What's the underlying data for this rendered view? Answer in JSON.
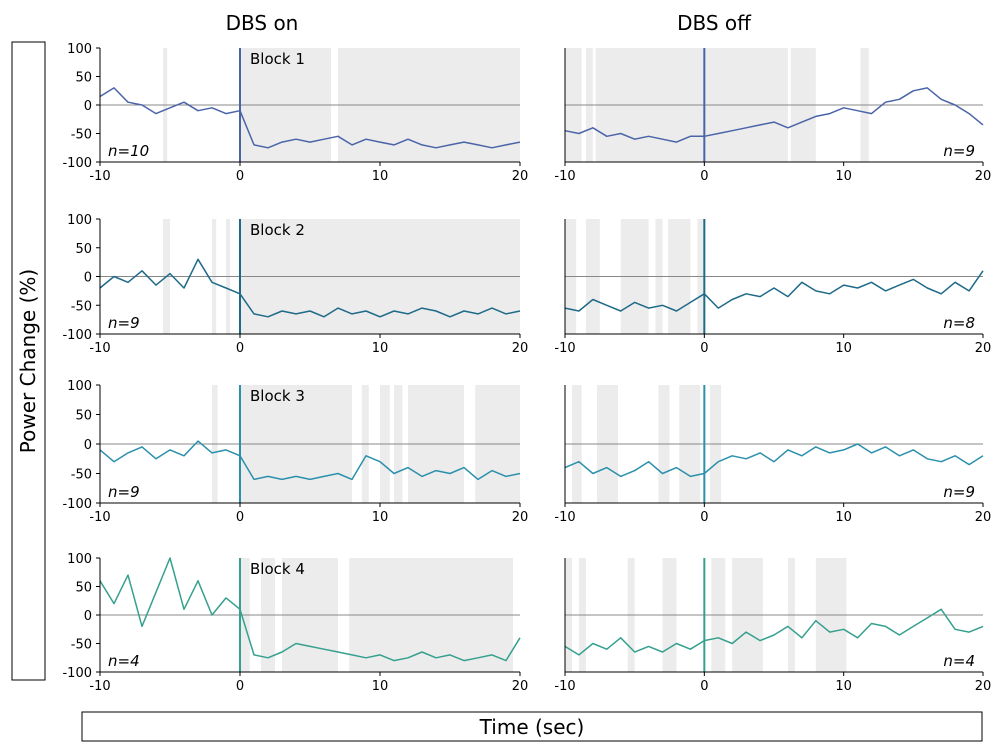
{
  "column_titles": [
    "DBS on",
    "DBS off"
  ],
  "ylabel": "Power Change (%)",
  "xlabel": "Time (sec)",
  "chart_data": [
    {
      "type": "line",
      "title": "Block 1",
      "annotation": "n=10",
      "color": "#4a64a8",
      "event_x": 0,
      "zero_line": true,
      "x": [
        -10,
        -9,
        -8,
        -7,
        -6,
        -5,
        -4,
        -3,
        -2,
        -1,
        0,
        1,
        2,
        3,
        4,
        5,
        6,
        7,
        8,
        9,
        10,
        11,
        12,
        13,
        14,
        15,
        16,
        17,
        18,
        19,
        20
      ],
      "values": [
        15,
        30,
        5,
        0,
        -15,
        -5,
        5,
        -10,
        -5,
        -15,
        -10,
        -70,
        -75,
        -65,
        -60,
        -65,
        -60,
        -55,
        -70,
        -60,
        -65,
        -70,
        -60,
        -70,
        -75,
        -70,
        -65,
        -70,
        -75,
        -70,
        -65
      ],
      "shaded": [
        [
          -5.5,
          -5.2
        ],
        [
          0,
          6.5
        ],
        [
          7,
          20
        ]
      ],
      "xlim": [
        -10,
        20
      ],
      "ylim": [
        -100,
        100
      ],
      "xticks": [
        -10,
        0,
        10,
        20
      ],
      "yticks": [
        100,
        50,
        0,
        -50,
        -100
      ]
    },
    {
      "type": "line",
      "annotation": "n=9",
      "color": "#4a64a8",
      "event_x": 0,
      "zero_line": true,
      "x": [
        -10,
        -9,
        -8,
        -7,
        -6,
        -5,
        -4,
        -3,
        -2,
        -1,
        0,
        1,
        2,
        3,
        4,
        5,
        6,
        7,
        8,
        9,
        10,
        11,
        12,
        13,
        14,
        15,
        16,
        17,
        18,
        19,
        20
      ],
      "values": [
        -45,
        -50,
        -40,
        -55,
        -50,
        -60,
        -55,
        -60,
        -65,
        -55,
        -55,
        -50,
        -45,
        -40,
        -35,
        -30,
        -40,
        -30,
        -20,
        -15,
        -5,
        -10,
        -15,
        5,
        10,
        25,
        30,
        10,
        0,
        -15,
        -35
      ],
      "shaded": [
        [
          -10,
          -8.8
        ],
        [
          -8.5,
          -8
        ],
        [
          -7.8,
          6
        ],
        [
          6.2,
          8
        ],
        [
          11.2,
          11.8
        ]
      ],
      "xlim": [
        -10,
        20
      ],
      "ylim": [
        -100,
        100
      ],
      "xticks": [
        -10,
        0,
        10,
        20
      ]
    },
    {
      "type": "line",
      "title": "Block 2",
      "annotation": "n=9",
      "color": "#1e6a88",
      "event_x": 0,
      "zero_line": true,
      "x": [
        -10,
        -9,
        -8,
        -7,
        -6,
        -5,
        -4,
        -3,
        -2,
        -1,
        0,
        1,
        2,
        3,
        4,
        5,
        6,
        7,
        8,
        9,
        10,
        11,
        12,
        13,
        14,
        15,
        16,
        17,
        18,
        19,
        20
      ],
      "values": [
        -20,
        0,
        -10,
        10,
        -15,
        5,
        -20,
        30,
        -10,
        -20,
        -30,
        -65,
        -70,
        -60,
        -65,
        -60,
        -70,
        -55,
        -65,
        -60,
        -70,
        -60,
        -65,
        -55,
        -60,
        -70,
        -60,
        -65,
        -55,
        -65,
        -60
      ],
      "shaded": [
        [
          -5.5,
          -5
        ],
        [
          -2,
          -1.7
        ],
        [
          -1,
          -0.7
        ],
        [
          0,
          20
        ]
      ],
      "xlim": [
        -10,
        20
      ],
      "ylim": [
        -100,
        100
      ],
      "xticks": [
        -10,
        0,
        10,
        20
      ],
      "yticks": [
        100,
        50,
        0,
        -50,
        -100
      ]
    },
    {
      "type": "line",
      "annotation": "n=8",
      "color": "#1e6a88",
      "event_x": 0,
      "zero_line": true,
      "x": [
        -10,
        -9,
        -8,
        -7,
        -6,
        -5,
        -4,
        -3,
        -2,
        -1,
        0,
        1,
        2,
        3,
        4,
        5,
        6,
        7,
        8,
        9,
        10,
        11,
        12,
        13,
        14,
        15,
        16,
        17,
        18,
        19,
        20
      ],
      "values": [
        -55,
        -60,
        -40,
        -50,
        -60,
        -45,
        -55,
        -50,
        -60,
        -45,
        -30,
        -55,
        -40,
        -30,
        -35,
        -20,
        -35,
        -10,
        -25,
        -30,
        -15,
        -20,
        -10,
        -25,
        -15,
        -5,
        -20,
        -30,
        -10,
        -25,
        10
      ],
      "shaded": [
        [
          -10,
          -9.2
        ],
        [
          -8.5,
          -7.5
        ],
        [
          -6,
          -4
        ],
        [
          -3.5,
          -3
        ],
        [
          -2.6,
          -1
        ],
        [
          -0.5,
          0
        ]
      ],
      "xlim": [
        -10,
        20
      ],
      "ylim": [
        -100,
        100
      ],
      "xticks": [
        -10,
        0,
        10,
        20
      ]
    },
    {
      "type": "line",
      "title": "Block 3",
      "annotation": "n=9",
      "color": "#2a90ac",
      "event_x": 0,
      "zero_line": true,
      "x": [
        -10,
        -9,
        -8,
        -7,
        -6,
        -5,
        -4,
        -3,
        -2,
        -1,
        0,
        1,
        2,
        3,
        4,
        5,
        6,
        7,
        8,
        9,
        10,
        11,
        12,
        13,
        14,
        15,
        16,
        17,
        18,
        19,
        20
      ],
      "values": [
        -10,
        -30,
        -15,
        -5,
        -25,
        -10,
        -20,
        5,
        -15,
        -10,
        -20,
        -60,
        -55,
        -60,
        -55,
        -60,
        -55,
        -50,
        -60,
        -20,
        -30,
        -50,
        -40,
        -55,
        -45,
        -50,
        -40,
        -60,
        -45,
        -55,
        -50
      ],
      "shaded": [
        [
          -2,
          -1.6
        ],
        [
          0,
          8
        ],
        [
          8.7,
          9.2
        ],
        [
          10,
          10.7
        ],
        [
          11,
          11.6
        ],
        [
          12,
          16
        ],
        [
          16.8,
          20
        ]
      ],
      "xlim": [
        -10,
        20
      ],
      "ylim": [
        -100,
        100
      ],
      "xticks": [
        -10,
        0,
        10,
        20
      ],
      "yticks": [
        100,
        50,
        0,
        -50,
        -100
      ]
    },
    {
      "type": "line",
      "annotation": "n=9",
      "color": "#2a90ac",
      "event_x": 0,
      "zero_line": true,
      "x": [
        -10,
        -9,
        -8,
        -7,
        -6,
        -5,
        -4,
        -3,
        -2,
        -1,
        0,
        1,
        2,
        3,
        4,
        5,
        6,
        7,
        8,
        9,
        10,
        11,
        12,
        13,
        14,
        15,
        16,
        17,
        18,
        19,
        20
      ],
      "values": [
        -40,
        -30,
        -50,
        -40,
        -55,
        -45,
        -30,
        -50,
        -40,
        -55,
        -50,
        -30,
        -20,
        -25,
        -15,
        -30,
        -10,
        -20,
        -5,
        -15,
        -10,
        0,
        -15,
        -5,
        -20,
        -10,
        -25,
        -30,
        -20,
        -35,
        -20
      ],
      "shaded": [
        [
          -9.5,
          -8.8
        ],
        [
          -7.7,
          -6.2
        ],
        [
          -3.3,
          -2.5
        ],
        [
          -1.8,
          -0.3
        ],
        [
          0.4,
          1.2
        ]
      ],
      "xlim": [
        -10,
        20
      ],
      "ylim": [
        -100,
        100
      ],
      "xticks": [
        -10,
        0,
        10,
        20
      ]
    },
    {
      "type": "line",
      "title": "Block 4",
      "annotation": "n=4",
      "color": "#36a08e",
      "event_x": 0,
      "zero_line": true,
      "x": [
        -10,
        -9,
        -8,
        -7,
        -6,
        -5,
        -4,
        -3,
        -2,
        -1,
        0,
        1,
        2,
        3,
        4,
        5,
        6,
        7,
        8,
        9,
        10,
        11,
        12,
        13,
        14,
        15,
        16,
        17,
        18,
        19,
        20
      ],
      "values": [
        60,
        20,
        70,
        -20,
        40,
        100,
        10,
        60,
        0,
        30,
        10,
        -70,
        -75,
        -65,
        -50,
        -55,
        -60,
        -65,
        -70,
        -75,
        -70,
        -80,
        -75,
        -65,
        -75,
        -70,
        -80,
        -75,
        -70,
        -80,
        -40
      ],
      "shaded": [
        [
          0,
          0.7
        ],
        [
          1.5,
          2.5
        ],
        [
          3,
          7
        ],
        [
          7.8,
          19.5
        ]
      ],
      "xlim": [
        -10,
        20
      ],
      "ylim": [
        -100,
        100
      ],
      "xticks": [
        -10,
        0,
        10,
        20
      ],
      "yticks": [
        100,
        50,
        0,
        -50,
        -100
      ]
    },
    {
      "type": "line",
      "annotation": "n=4",
      "color": "#36a08e",
      "event_x": 0,
      "zero_line": true,
      "x": [
        -10,
        -9,
        -8,
        -7,
        -6,
        -5,
        -4,
        -3,
        -2,
        -1,
        0,
        1,
        2,
        3,
        4,
        5,
        6,
        7,
        8,
        9,
        10,
        11,
        12,
        13,
        14,
        15,
        16,
        17,
        18,
        19,
        20
      ],
      "values": [
        -55,
        -70,
        -50,
        -60,
        -40,
        -65,
        -55,
        -65,
        -50,
        -60,
        -45,
        -40,
        -50,
        -30,
        -45,
        -35,
        -20,
        -40,
        -10,
        -30,
        -25,
        -40,
        -15,
        -20,
        -35,
        -20,
        -5,
        10,
        -25,
        -30,
        -20
      ],
      "shaded": [
        [
          -10,
          -9.5
        ],
        [
          -9,
          -8.5
        ],
        [
          -5.5,
          -5
        ],
        [
          -3,
          -2
        ],
        [
          0.5,
          1.5
        ],
        [
          2,
          4.2
        ],
        [
          6,
          6.5
        ],
        [
          8,
          10.2
        ]
      ],
      "xlim": [
        -10,
        20
      ],
      "ylim": [
        -100,
        100
      ],
      "xticks": [
        -10,
        0,
        10,
        20
      ]
    }
  ]
}
